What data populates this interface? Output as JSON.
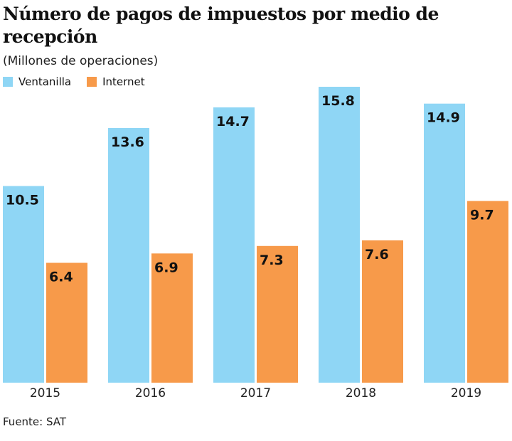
{
  "chart_data": {
    "type": "bar",
    "title": "Número de pagos de impuestos por medio de recepción",
    "subtitle": "(Millones de operaciones)",
    "categories": [
      "2015",
      "2016",
      "2017",
      "2018",
      "2019"
    ],
    "series": [
      {
        "name": "Ventanilla",
        "color": "#8fd6f5",
        "values": [
          10.5,
          13.6,
          14.7,
          15.8,
          14.9
        ]
      },
      {
        "name": "Internet",
        "color": "#f79a4a",
        "values": [
          6.4,
          6.9,
          7.3,
          7.6,
          9.7
        ]
      }
    ],
    "ylim": [
      0,
      15.8
    ],
    "grid": false,
    "legend": "top-left",
    "source": "Fuente: SAT"
  }
}
